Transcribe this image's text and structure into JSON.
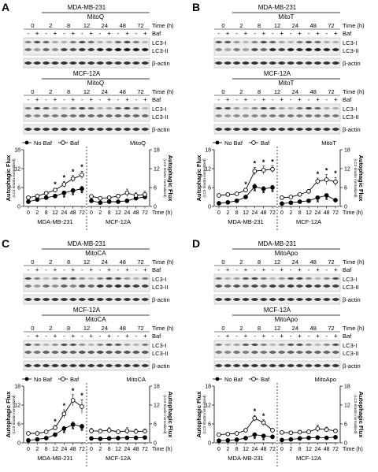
{
  "panels": [
    {
      "letter": "A",
      "drug": "MitoQ",
      "blots": [
        {
          "cell_line": "MDA-MB-231",
          "band_intensity": [
            0.55,
            0.35,
            0.6,
            0.42,
            0.78,
            0.72,
            0.86,
            0.82,
            0.95,
            0.92,
            1.0,
            0.97
          ]
        },
        {
          "cell_line": "MCF-12A",
          "band_intensity": [
            0.5,
            0.45,
            0.52,
            0.5,
            0.55,
            0.55,
            0.6,
            0.58,
            0.6,
            0.6,
            0.62,
            0.6
          ]
        }
      ],
      "chart_data": {
        "type": "line",
        "ylabel": "Autophagic Flux",
        "ylabel_sub": "(LC3-II/actin normalized)",
        "ylim": [
          0,
          18
        ],
        "yticks": [
          0,
          6,
          12,
          18
        ],
        "x": [
          "0",
          "2",
          "8",
          "12",
          "24",
          "48",
          "72"
        ],
        "groups": [
          "MDA-MB-231",
          "MCF-12A"
        ],
        "series": [
          {
            "name": "No Baf",
            "group": "MDA-MB-231",
            "values": [
              1.5,
              2.2,
              2.8,
              3.3,
              4.3,
              5.0,
              5.6
            ],
            "errors": [
              0.3,
              0.3,
              0.4,
              0.5,
              0.6,
              0.7,
              0.8
            ],
            "star": [
              false,
              false,
              false,
              false,
              true,
              true,
              true
            ]
          },
          {
            "name": "Baf",
            "group": "MDA-MB-231",
            "values": [
              2.8,
              3.3,
              4.2,
              5.2,
              7.0,
              8.8,
              10.0
            ],
            "errors": [
              0.4,
              0.4,
              0.6,
              0.6,
              0.9,
              1.0,
              1.2
            ],
            "star": [
              false,
              false,
              false,
              true,
              true,
              true,
              true
            ]
          },
          {
            "name": "No Baf",
            "group": "MCF-12A",
            "values": [
              1.8,
              1.2,
              1.5,
              1.5,
              1.8,
              2.6,
              3.0
            ],
            "errors": [
              0.3,
              0.3,
              0.3,
              0.3,
              0.4,
              0.5,
              0.6
            ],
            "star": [
              false,
              false,
              false,
              false,
              false,
              false,
              false
            ]
          },
          {
            "name": "Baf",
            "group": "MCF-12A",
            "values": [
              3.2,
              2.6,
              2.8,
              3.3,
              4.3,
              3.5,
              3.8
            ],
            "errors": [
              0.5,
              0.5,
              0.5,
              0.6,
              1.2,
              0.8,
              1.0
            ],
            "star": [
              false,
              false,
              false,
              false,
              false,
              false,
              false
            ]
          }
        ]
      }
    },
    {
      "letter": "B",
      "drug": "MitoT",
      "blots": [
        {
          "cell_line": "MDA-MB-231",
          "band_intensity": [
            0.45,
            0.3,
            0.5,
            0.35,
            0.72,
            0.6,
            0.9,
            0.8,
            0.95,
            0.9,
            0.98,
            0.92
          ]
        },
        {
          "cell_line": "MCF-12A",
          "band_intensity": [
            0.4,
            0.35,
            0.42,
            0.4,
            0.45,
            0.45,
            0.5,
            0.5,
            0.52,
            0.5,
            0.55,
            0.52
          ]
        }
      ],
      "chart_data": {
        "type": "line",
        "ylabel": "Autophagic Flux",
        "ylabel_sub": "(LC3-II/actin normalized)",
        "ylim": [
          0,
          18
        ],
        "yticks": [
          0,
          6,
          12,
          18
        ],
        "x": [
          "0",
          "2",
          "8",
          "12",
          "24",
          "48",
          "72"
        ],
        "groups": [
          "MDA-MB-231",
          "MCF-12A"
        ],
        "series": [
          {
            "name": "No Baf",
            "group": "MDA-MB-231",
            "values": [
              1.0,
              1.3,
              1.8,
              3.0,
              6.3,
              5.6,
              6.0
            ],
            "errors": [
              0.2,
              0.2,
              0.3,
              0.4,
              0.8,
              0.7,
              0.7
            ],
            "star": [
              false,
              false,
              false,
              false,
              true,
              true,
              true
            ]
          },
          {
            "name": "Baf",
            "group": "MDA-MB-231",
            "values": [
              3.5,
              3.8,
              4.0,
              5.2,
              11.2,
              11.5,
              11.8
            ],
            "errors": [
              0.4,
              0.4,
              0.5,
              0.6,
              1.2,
              1.3,
              1.1
            ],
            "star": [
              false,
              false,
              false,
              true,
              true,
              true,
              true
            ]
          },
          {
            "name": "No Baf",
            "group": "MCF-12A",
            "values": [
              0.9,
              1.2,
              1.5,
              1.8,
              2.8,
              3.5,
              2.0
            ],
            "errors": [
              0.2,
              0.2,
              0.3,
              0.3,
              0.4,
              0.5,
              0.4
            ],
            "star": [
              false,
              false,
              false,
              false,
              true,
              true,
              false
            ]
          },
          {
            "name": "Baf",
            "group": "MCF-12A",
            "values": [
              2.8,
              3.0,
              3.8,
              4.8,
              8.0,
              8.5,
              7.8
            ],
            "errors": [
              0.4,
              0.4,
              0.5,
              0.6,
              1.0,
              1.6,
              1.4
            ],
            "star": [
              false,
              false,
              false,
              false,
              true,
              true,
              true
            ]
          }
        ]
      }
    },
    {
      "letter": "C",
      "drug": "MitoCA",
      "blots": [
        {
          "cell_line": "MDA-MB-231",
          "band_intensity": [
            0.5,
            0.35,
            0.55,
            0.4,
            0.62,
            0.45,
            0.7,
            0.6,
            0.85,
            0.75,
            0.9,
            0.8
          ]
        },
        {
          "cell_line": "MCF-12A",
          "band_intensity": [
            0.6,
            0.55,
            0.65,
            0.6,
            0.7,
            0.65,
            0.72,
            0.68,
            0.75,
            0.7,
            0.72,
            0.7
          ]
        }
      ],
      "chart_data": {
        "type": "line",
        "ylabel": "Autophagic Flux",
        "ylabel_sub": "(LC3-II/actin normalized)",
        "ylim": [
          0,
          18
        ],
        "yticks": [
          0,
          6,
          12,
          18
        ],
        "x": [
          "0",
          "2",
          "8",
          "12",
          "24",
          "48",
          "72"
        ],
        "groups": [
          "MDA-MB-231",
          "MCF-12A"
        ],
        "series": [
          {
            "name": "No Baf",
            "group": "MDA-MB-231",
            "values": [
              0.8,
              1.1,
              1.5,
              2.6,
              4.5,
              5.8,
              5.2
            ],
            "errors": [
              0.2,
              0.2,
              0.3,
              0.4,
              0.7,
              0.8,
              0.7
            ],
            "star": [
              false,
              false,
              false,
              false,
              true,
              true,
              true
            ]
          },
          {
            "name": "Baf",
            "group": "MDA-MB-231",
            "values": [
              3.0,
              3.0,
              3.5,
              4.8,
              9.2,
              13.5,
              11.5
            ],
            "errors": [
              0.4,
              0.4,
              0.5,
              0.7,
              1.3,
              1.8,
              2.2
            ],
            "star": [
              false,
              false,
              false,
              true,
              true,
              true,
              true
            ]
          },
          {
            "name": "No Baf",
            "group": "MCF-12A",
            "values": [
              1.4,
              1.3,
              1.4,
              1.5,
              1.6,
              1.6,
              1.7
            ],
            "errors": [
              0.3,
              0.3,
              0.3,
              0.3,
              0.3,
              0.3,
              0.3
            ],
            "star": [
              false,
              false,
              false,
              false,
              false,
              false,
              false
            ]
          },
          {
            "name": "Baf",
            "group": "MCF-12A",
            "values": [
              3.8,
              3.7,
              4.0,
              3.5,
              3.8,
              3.6,
              3.7
            ],
            "errors": [
              0.8,
              0.7,
              0.8,
              0.6,
              1.0,
              0.8,
              0.7
            ],
            "star": [
              false,
              false,
              false,
              false,
              false,
              false,
              false
            ]
          }
        ]
      }
    },
    {
      "letter": "D",
      "drug": "MitoApo",
      "blots": [
        {
          "cell_line": "MDA-MB-231",
          "band_intensity": [
            0.7,
            0.6,
            0.72,
            0.62,
            0.75,
            0.65,
            0.8,
            0.7,
            0.82,
            0.75,
            0.85,
            0.78
          ]
        },
        {
          "cell_line": "MCF-12A",
          "band_intensity": [
            0.5,
            0.45,
            0.55,
            0.5,
            0.6,
            0.55,
            0.62,
            0.58,
            0.65,
            0.6,
            0.65,
            0.62
          ]
        }
      ],
      "chart_data": {
        "type": "line",
        "ylabel": "Autophagic Flux",
        "ylabel_sub": "(LC3-II/actin normalized)",
        "ylim": [
          0,
          18
        ],
        "yticks": [
          0,
          6,
          12,
          18
        ],
        "x": [
          "0",
          "2",
          "8",
          "12",
          "24",
          "48",
          "72"
        ],
        "groups": [
          "MDA-MB-231",
          "MCF-12A"
        ],
        "series": [
          {
            "name": "No Baf",
            "group": "MDA-MB-231",
            "values": [
              0.7,
              0.8,
              1.0,
              1.5,
              2.6,
              2.2,
              1.9
            ],
            "errors": [
              0.1,
              0.1,
              0.2,
              0.2,
              0.3,
              0.3,
              0.3
            ],
            "star": [
              false,
              false,
              false,
              false,
              true,
              true,
              false
            ]
          },
          {
            "name": "Baf",
            "group": "MDA-MB-231",
            "values": [
              2.6,
              2.8,
              3.0,
              4.0,
              7.8,
              6.4,
              4.0
            ],
            "errors": [
              0.3,
              0.3,
              0.4,
              0.5,
              0.9,
              0.9,
              0.6
            ],
            "star": [
              false,
              false,
              false,
              false,
              true,
              true,
              false
            ]
          },
          {
            "name": "No Baf",
            "group": "MCF-12A",
            "values": [
              0.9,
              1.1,
              1.4,
              1.6,
              1.7,
              1.6,
              1.8
            ],
            "errors": [
              0.2,
              0.2,
              0.2,
              0.3,
              0.3,
              0.3,
              0.3
            ],
            "star": [
              false,
              false,
              false,
              false,
              false,
              false,
              false
            ]
          },
          {
            "name": "Baf",
            "group": "MCF-12A",
            "values": [
              3.3,
              3.2,
              3.4,
              3.5,
              4.5,
              4.2,
              3.8
            ],
            "errors": [
              0.5,
              0.4,
              0.5,
              0.6,
              1.1,
              0.8,
              0.6
            ],
            "star": [
              false,
              false,
              false,
              false,
              false,
              false,
              false
            ]
          }
        ]
      }
    }
  ],
  "time_points": [
    "0",
    "2",
    "8",
    "12",
    "24",
    "48",
    "72"
  ],
  "labels": {
    "time": "Time (h)",
    "baf": "Baf",
    "plus": "+",
    "minus": "-",
    "lc3_i": "LC3-I",
    "lc3_ii": "LC3-II",
    "actin": "β-actin",
    "significance": "*"
  },
  "colors": {
    "line": "#000000",
    "filled_marker": "#000000",
    "open_marker": "#ffffff",
    "band_dark": "#1a1a1a",
    "band_light": "#d8d8d8",
    "blot_bg": "#ededed"
  }
}
